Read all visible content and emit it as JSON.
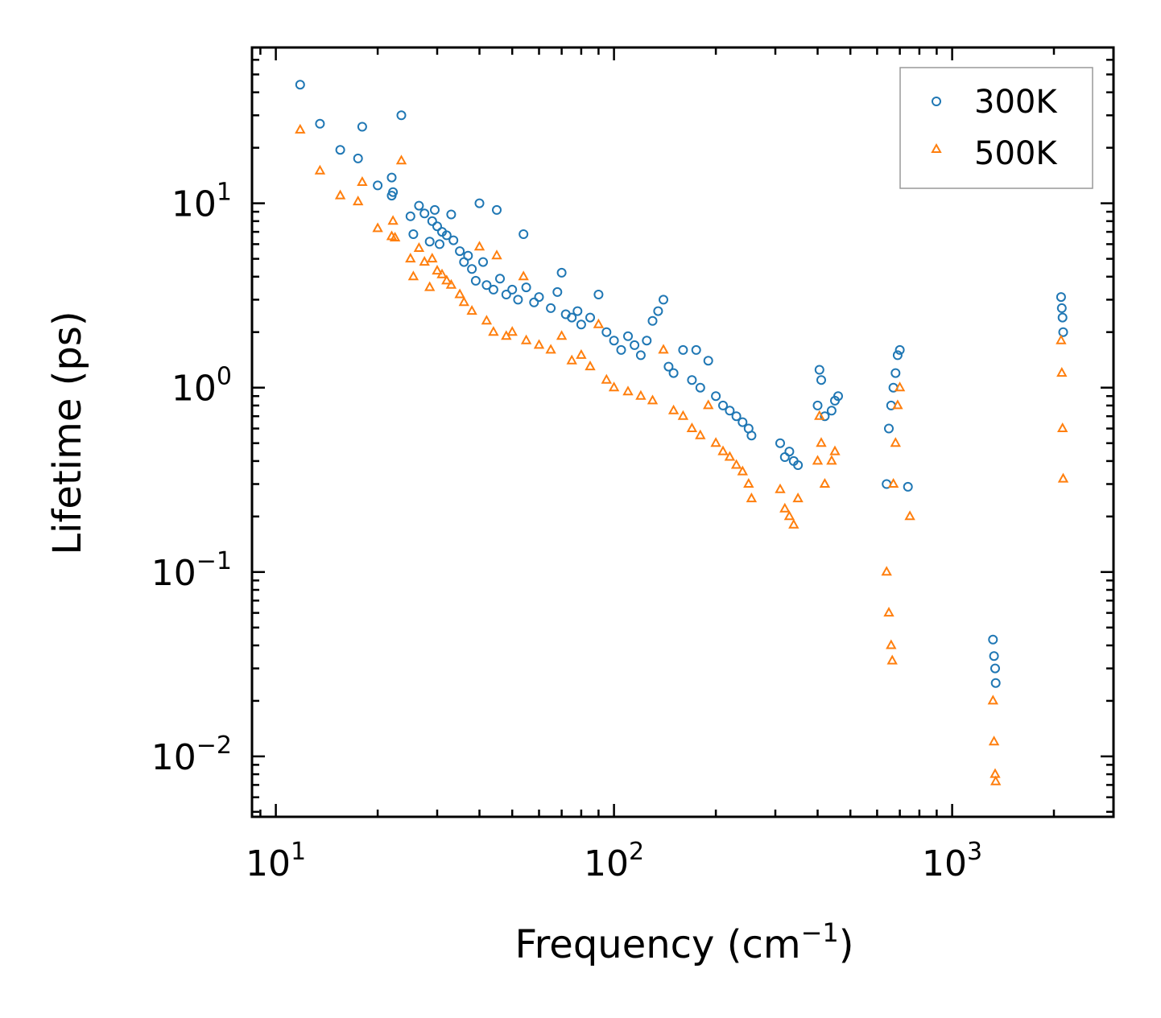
{
  "chart_data": {
    "type": "scatter",
    "title": "",
    "xlabel": "Frequency (cm",
    "xlabel_exponent": "−1",
    "xlabel_suffix": ")",
    "ylabel": "Lifetime (ps)",
    "xscale": "log",
    "yscale": "log",
    "xlim": [
      8.5,
      3000
    ],
    "ylim": [
      0.0047,
      70
    ],
    "grid": false,
    "legend_position": "top-right",
    "x_ticks": [
      {
        "base": "10",
        "exp": "1",
        "value": 10
      },
      {
        "base": "10",
        "exp": "2",
        "value": 100
      },
      {
        "base": "10",
        "exp": "3",
        "value": 1000
      }
    ],
    "y_ticks": [
      {
        "base": "10",
        "exp": "1",
        "value": 10
      },
      {
        "base": "10",
        "exp": "0",
        "value": 1
      },
      {
        "base": "10",
        "exp": "−1",
        "value": 0.1
      },
      {
        "base": "10",
        "exp": "−2",
        "value": 0.01
      }
    ],
    "series": [
      {
        "name": "300K",
        "marker": "circle",
        "color": "#1f77b4",
        "points": [
          [
            11.8,
            44
          ],
          [
            13.5,
            27
          ],
          [
            15.5,
            19.5
          ],
          [
            17.5,
            17.5
          ],
          [
            18,
            26
          ],
          [
            20,
            12.5
          ],
          [
            22,
            11
          ],
          [
            22.2,
            11.5
          ],
          [
            22,
            13.8
          ],
          [
            23.5,
            30
          ],
          [
            25,
            8.5
          ],
          [
            25.5,
            6.8
          ],
          [
            26.5,
            9.7
          ],
          [
            27.5,
            8.8
          ],
          [
            28.5,
            6.2
          ],
          [
            29,
            8
          ],
          [
            29.5,
            9.2
          ],
          [
            30,
            7.5
          ],
          [
            30.5,
            6
          ],
          [
            31,
            7
          ],
          [
            32,
            6.7
          ],
          [
            33,
            8.7
          ],
          [
            33.5,
            6.3
          ],
          [
            35,
            5.5
          ],
          [
            36,
            4.8
          ],
          [
            37,
            5.2
          ],
          [
            38,
            4.4
          ],
          [
            39,
            3.8
          ],
          [
            40,
            10
          ],
          [
            41,
            4.8
          ],
          [
            42,
            3.6
          ],
          [
            44,
            3.4
          ],
          [
            45,
            9.2
          ],
          [
            46,
            3.9
          ],
          [
            48,
            3.2
          ],
          [
            50,
            3.4
          ],
          [
            52,
            3
          ],
          [
            54,
            6.8
          ],
          [
            55,
            3.5
          ],
          [
            58,
            2.9
          ],
          [
            60,
            3.1
          ],
          [
            65,
            2.7
          ],
          [
            68,
            3.3
          ],
          [
            70,
            4.2
          ],
          [
            72,
            2.5
          ],
          [
            75,
            2.4
          ],
          [
            78,
            2.6
          ],
          [
            80,
            2.2
          ],
          [
            85,
            2.4
          ],
          [
            90,
            3.2
          ],
          [
            95,
            2.0
          ],
          [
            100,
            1.8
          ],
          [
            105,
            1.6
          ],
          [
            110,
            1.9
          ],
          [
            115,
            1.7
          ],
          [
            120,
            1.5
          ],
          [
            125,
            1.8
          ],
          [
            130,
            2.3
          ],
          [
            135,
            2.6
          ],
          [
            140,
            3.0
          ],
          [
            145,
            1.3
          ],
          [
            150,
            1.2
          ],
          [
            160,
            1.6
          ],
          [
            170,
            1.1
          ],
          [
            175,
            1.6
          ],
          [
            180,
            1.0
          ],
          [
            190,
            1.4
          ],
          [
            200,
            0.9
          ],
          [
            210,
            0.8
          ],
          [
            220,
            0.75
          ],
          [
            230,
            0.7
          ],
          [
            240,
            0.65
          ],
          [
            250,
            0.6
          ],
          [
            255,
            0.55
          ],
          [
            310,
            0.5
          ],
          [
            320,
            0.42
          ],
          [
            330,
            0.45
          ],
          [
            340,
            0.4
          ],
          [
            350,
            0.38
          ],
          [
            400,
            0.8
          ],
          [
            405,
            1.25
          ],
          [
            410,
            1.1
          ],
          [
            420,
            0.7
          ],
          [
            440,
            0.75
          ],
          [
            450,
            0.85
          ],
          [
            460,
            0.9
          ],
          [
            640,
            0.3
          ],
          [
            650,
            0.6
          ],
          [
            660,
            0.8
          ],
          [
            670,
            1.0
          ],
          [
            680,
            1.2
          ],
          [
            690,
            1.5
          ],
          [
            700,
            1.6
          ],
          [
            740,
            0.29
          ],
          [
            1320,
            0.043
          ],
          [
            1330,
            0.035
          ],
          [
            1340,
            0.03
          ],
          [
            1345,
            0.025
          ],
          [
            2100,
            3.1
          ],
          [
            2110,
            2.7
          ],
          [
            2120,
            2.4
          ],
          [
            2130,
            2.0
          ]
        ]
      },
      {
        "name": "500K",
        "marker": "triangle",
        "color": "#ff7f0e",
        "points": [
          [
            11.8,
            25
          ],
          [
            13.5,
            15
          ],
          [
            15.5,
            11
          ],
          [
            17.5,
            10.2
          ],
          [
            18,
            13
          ],
          [
            20,
            7.3
          ],
          [
            22,
            6.6
          ],
          [
            22.2,
            8
          ],
          [
            22.5,
            6.5
          ],
          [
            23.5,
            17
          ],
          [
            25,
            5
          ],
          [
            25.5,
            4
          ],
          [
            26.5,
            5.7
          ],
          [
            27.5,
            4.8
          ],
          [
            28.5,
            3.5
          ],
          [
            29,
            5
          ],
          [
            30,
            4.3
          ],
          [
            31,
            4.1
          ],
          [
            32,
            3.8
          ],
          [
            33,
            3.6
          ],
          [
            35,
            3.2
          ],
          [
            36,
            2.9
          ],
          [
            38,
            2.6
          ],
          [
            40,
            5.8
          ],
          [
            42,
            2.3
          ],
          [
            44,
            2.0
          ],
          [
            45,
            5.2
          ],
          [
            48,
            1.9
          ],
          [
            50,
            2.0
          ],
          [
            54,
            4.0
          ],
          [
            55,
            1.8
          ],
          [
            60,
            1.7
          ],
          [
            65,
            1.6
          ],
          [
            70,
            1.9
          ],
          [
            75,
            1.4
          ],
          [
            80,
            1.5
          ],
          [
            85,
            1.3
          ],
          [
            90,
            2.2
          ],
          [
            95,
            1.1
          ],
          [
            100,
            1.0
          ],
          [
            110,
            0.95
          ],
          [
            120,
            0.9
          ],
          [
            130,
            0.85
          ],
          [
            140,
            1.6
          ],
          [
            150,
            0.75
          ],
          [
            160,
            0.7
          ],
          [
            170,
            0.6
          ],
          [
            180,
            0.55
          ],
          [
            190,
            0.8
          ],
          [
            200,
            0.5
          ],
          [
            210,
            0.45
          ],
          [
            220,
            0.42
          ],
          [
            230,
            0.38
          ],
          [
            240,
            0.35
          ],
          [
            250,
            0.3
          ],
          [
            255,
            0.25
          ],
          [
            310,
            0.28
          ],
          [
            320,
            0.22
          ],
          [
            330,
            0.2
          ],
          [
            340,
            0.18
          ],
          [
            350,
            0.25
          ],
          [
            400,
            0.4
          ],
          [
            405,
            0.7
          ],
          [
            410,
            0.5
          ],
          [
            420,
            0.3
          ],
          [
            440,
            0.4
          ],
          [
            450,
            0.45
          ],
          [
            640,
            0.1
          ],
          [
            650,
            0.06
          ],
          [
            660,
            0.04
          ],
          [
            665,
            0.033
          ],
          [
            670,
            0.3
          ],
          [
            680,
            0.5
          ],
          [
            690,
            0.8
          ],
          [
            700,
            1.0
          ],
          [
            750,
            0.2
          ],
          [
            1320,
            0.02
          ],
          [
            1330,
            0.012
          ],
          [
            1340,
            0.008
          ],
          [
            1345,
            0.0073
          ],
          [
            2100,
            1.8
          ],
          [
            2110,
            1.2
          ],
          [
            2120,
            0.6
          ],
          [
            2130,
            0.32
          ]
        ]
      }
    ]
  }
}
